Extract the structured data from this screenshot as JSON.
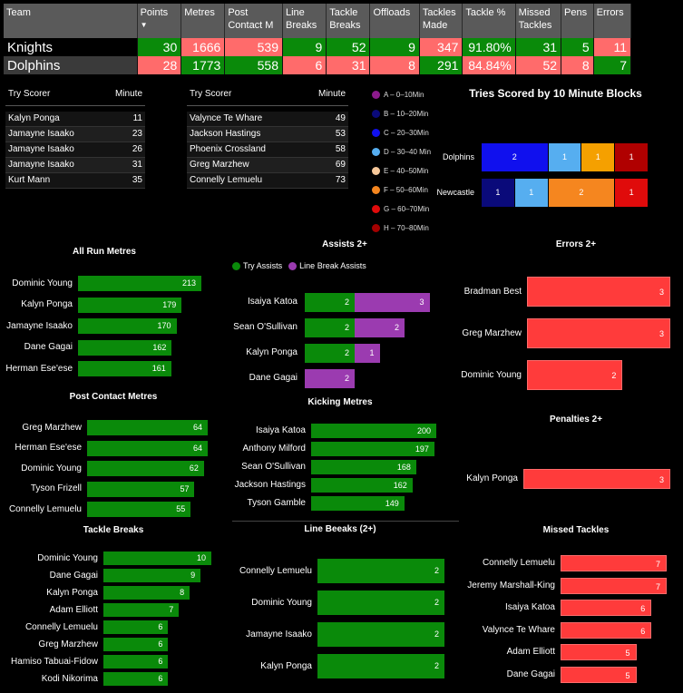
{
  "stats": {
    "headers": [
      "Team",
      "Points",
      "Metres",
      "Post Contact M",
      "Line Breaks",
      "Tackle Breaks",
      "Offloads",
      "Tackles Made",
      "Tackle %",
      "Missed Tackles",
      "Pens",
      "Errors"
    ],
    "rows": [
      {
        "team": "Knights",
        "values": [
          "30",
          "1666",
          "539",
          "9",
          "52",
          "9",
          "347",
          "91.80%",
          "31",
          "5",
          "11"
        ],
        "colors": [
          "g",
          "r",
          "r",
          "g",
          "g",
          "g",
          "r",
          "g",
          "g",
          "g",
          "r"
        ]
      },
      {
        "team": "Dolphins",
        "values": [
          "28",
          "1773",
          "558",
          "6",
          "31",
          "8",
          "291",
          "84.84%",
          "52",
          "8",
          "7"
        ],
        "colors": [
          "r",
          "g",
          "g",
          "r",
          "r",
          "r",
          "g",
          "r",
          "r",
          "r",
          "g"
        ]
      }
    ]
  },
  "try_left": {
    "h1": "Try Scorer",
    "h2": "Minute",
    "rows": [
      [
        "Kalyn Ponga",
        "11"
      ],
      [
        "Jamayne Isaako",
        "23"
      ],
      [
        "Jamayne Isaako",
        "26"
      ],
      [
        "Jamayne Isaako",
        "31"
      ],
      [
        "Kurt Mann",
        "35"
      ]
    ]
  },
  "try_right": {
    "h1": "Try Scorer",
    "h2": "Minute",
    "rows": [
      [
        "Valynce Te Whare",
        "49"
      ],
      [
        "Jackson Hastings",
        "53"
      ],
      [
        "Phoenix Crossland",
        "58"
      ],
      [
        "Greg Marzhew",
        "69"
      ],
      [
        "Connelly Lemuelu",
        "73"
      ]
    ]
  },
  "legend": [
    {
      "label": "A – 0–10Min",
      "color": "#8b1a8b"
    },
    {
      "label": "B – 10–20Min",
      "color": "#0a0a7a"
    },
    {
      "label": "C – 20–30Min",
      "color": "#1010ee"
    },
    {
      "label": "D – 30–40 Min",
      "color": "#56aef0"
    },
    {
      "label": "E – 40–50Min",
      "color": "#f6c89a"
    },
    {
      "label": "F – 50–60Min",
      "color": "#f5861f"
    },
    {
      "label": "G – 60–70Min",
      "color": "#e00b0b"
    },
    {
      "label": "H – 70–80Min",
      "color": "#a30000"
    }
  ],
  "blocks": {
    "title": "Tries Scored by 10 Minute Blocks",
    "teams": [
      {
        "name": "Dolphins",
        "segments": [
          {
            "v": 2,
            "c": "#1010ee"
          },
          {
            "v": 1,
            "c": "#56aef0"
          },
          {
            "v": 1,
            "c": "#f5a000"
          },
          {
            "v": 1,
            "c": "#b00000"
          }
        ]
      },
      {
        "name": "Newcastle",
        "segments": [
          {
            "v": 1,
            "c": "#0a0a7a"
          },
          {
            "v": 1,
            "c": "#56aef0"
          },
          {
            "v": 2,
            "c": "#f5861f"
          },
          {
            "v": 1,
            "c": "#e00b0b"
          }
        ]
      }
    ]
  },
  "run_metres": {
    "title": "All Run Metres",
    "items": [
      [
        "Dominic Young",
        213
      ],
      [
        "Kalyn Ponga",
        179
      ],
      [
        "Jamayne Isaako",
        170
      ],
      [
        "Dane Gagai",
        162
      ],
      [
        "Herman Ese'ese",
        161
      ]
    ]
  },
  "post_contact": {
    "title": "Post Contact Metres",
    "items": [
      [
        "Greg Marzhew",
        64
      ],
      [
        "Herman Ese'ese",
        64
      ],
      [
        "Dominic Young",
        62
      ],
      [
        "Tyson Frizell",
        57
      ],
      [
        "Connelly Lemuelu",
        55
      ]
    ]
  },
  "tackle_breaks": {
    "title": "Tackle Breaks",
    "items": [
      [
        "Dominic Young",
        10
      ],
      [
        "Dane Gagai",
        9
      ],
      [
        "Kalyn Ponga",
        8
      ],
      [
        "Adam Elliott",
        7
      ],
      [
        "Connelly Lemuelu",
        6
      ],
      [
        "Greg Marzhew",
        6
      ],
      [
        "Hamiso Tabuai-Fidow",
        6
      ],
      [
        "Kodi Nikorima",
        6
      ]
    ]
  },
  "assists": {
    "title": "Assists 2+",
    "legend_try": "Try Assists",
    "legend_lb": "Line Break Assists",
    "items": [
      [
        "Isaiya Katoa",
        2,
        3
      ],
      [
        "Sean O'Sullivan",
        2,
        2
      ],
      [
        "Kalyn Ponga",
        2,
        1
      ],
      [
        "Dane Gagai",
        0,
        2
      ]
    ]
  },
  "kicking": {
    "title": "Kicking Metres",
    "items": [
      [
        "Isaiya Katoa",
        200
      ],
      [
        "Anthony Milford",
        197
      ],
      [
        "Sean O'Sullivan",
        168
      ],
      [
        "Jackson Hastings",
        162
      ],
      [
        "Tyson Gamble",
        149
      ]
    ]
  },
  "line_breaks": {
    "title": "Line Beeaks (2+)",
    "items": [
      [
        "Connelly Lemuelu",
        2
      ],
      [
        "Dominic Young",
        2
      ],
      [
        "Jamayne Isaako",
        2
      ],
      [
        "Kalyn Ponga",
        2
      ]
    ]
  },
  "errors": {
    "title": "Errors 2+",
    "items": [
      [
        "Bradman Best",
        3
      ],
      [
        "Greg Marzhew",
        3
      ],
      [
        "Dominic Young",
        2
      ]
    ]
  },
  "penalties": {
    "title": "Penalties 2+",
    "items": [
      [
        "Kalyn Ponga",
        3
      ]
    ]
  },
  "missed": {
    "title": "Missed Tackles",
    "items": [
      [
        "Connelly Lemuelu",
        7
      ],
      [
        "Jeremy Marshall-King",
        7
      ],
      [
        "Isaiya Katoa",
        6
      ],
      [
        "Valynce Te Whare",
        6
      ],
      [
        "Adam Elliott",
        5
      ],
      [
        "Dane Gagai",
        5
      ]
    ]
  }
}
